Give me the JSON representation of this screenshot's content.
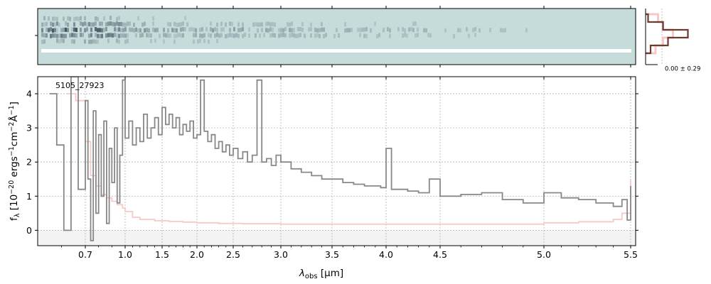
{
  "chart_data": [
    {
      "type": "heatmap",
      "panel": "2D spectrum",
      "colormap": [
        "#c5dcdb",
        "#1a2238"
      ],
      "masked_color": "#c5dcdb",
      "xlim": [
        0.5,
        5.53
      ]
    },
    {
      "type": "line",
      "panel": "spatial profile",
      "annotation": "0.00 ± 0.29",
      "series": [
        {
          "color": "#6b3b32",
          "profile": [
            0.05,
            0.35,
            0.85,
            0.45,
            0.1
          ]
        },
        {
          "color": "#f6c9c4",
          "profile": [
            0.25,
            0.35,
            0.55,
            0.35,
            0.2
          ]
        }
      ]
    },
    {
      "type": "line",
      "panel": "1D spectrum",
      "annotation": "5105_27923",
      "xlabel_pre": "λ",
      "xlabel_sub": "obs",
      "xlabel_post": " [μm]",
      "ylabel_pre": "f",
      "ylabel_sub": "λ",
      "ylabel_post": " [10",
      "ylabel_sup": "−20",
      "ylabel_end": " ergs",
      "ylabel_sup2": "−1",
      "ylabel_end2": "cm",
      "ylabel_sup3": "−2",
      "ylabel_end3": "Å",
      "ylabel_sup4": "−1",
      "ylabel_close": "]",
      "xlim": [
        0.5,
        5.53
      ],
      "ylim": [
        -0.45,
        4.5
      ],
      "x_scale": "nonlinear (prism resolution)",
      "grid": true,
      "x_ticks": [
        0.7,
        1.0,
        1.5,
        2.0,
        2.5,
        3.0,
        3.5,
        4.0,
        4.5,
        5.0,
        5.5
      ],
      "x_tick_labels": [
        "0.7",
        "1.0",
        "1.5",
        "2.0",
        "2.5",
        "3.0",
        "3.5",
        "4.0",
        "4.5",
        "5.0",
        "5.5"
      ],
      "y_ticks": [
        0,
        1,
        2,
        3,
        4
      ],
      "y_tick_labels": [
        "0",
        "1",
        "2",
        "3",
        "4"
      ],
      "series": [
        {
          "color": "#888888",
          "x": [
            0.55,
            0.58,
            0.61,
            0.64,
            0.67,
            0.7,
            0.72,
            0.74,
            0.76,
            0.78,
            0.8,
            0.82,
            0.84,
            0.86,
            0.88,
            0.9,
            0.92,
            0.94,
            0.96,
            0.98,
            1.0,
            1.05,
            1.1,
            1.15,
            1.2,
            1.25,
            1.3,
            1.35,
            1.4,
            1.45,
            1.5,
            1.55,
            1.6,
            1.65,
            1.7,
            1.75,
            1.8,
            1.85,
            1.9,
            1.95,
            2.0,
            2.05,
            2.1,
            2.15,
            2.2,
            2.25,
            2.3,
            2.35,
            2.4,
            2.45,
            2.5,
            2.55,
            2.6,
            2.65,
            2.7,
            2.75,
            2.8,
            2.85,
            2.9,
            2.95,
            3.0,
            3.1,
            3.2,
            3.3,
            3.4,
            3.5,
            3.6,
            3.7,
            3.8,
            3.9,
            3.95,
            4.0,
            4.05,
            4.1,
            4.2,
            4.3,
            4.4,
            4.5,
            4.6,
            4.7,
            4.8,
            4.9,
            5.0,
            5.1,
            5.2,
            5.3,
            5.4,
            5.45,
            5.48,
            5.5
          ],
          "y": [
            4.0,
            2.5,
            0.0,
            4.5,
            1.2,
            3.8,
            1.5,
            -0.3,
            3.5,
            0.5,
            2.8,
            1.0,
            3.2,
            0.2,
            2.4,
            1.4,
            3.0,
            0.8,
            2.2,
            4.4,
            2.7,
            3.2,
            2.5,
            3.0,
            2.6,
            3.4,
            2.7,
            3.0,
            3.3,
            2.8,
            3.6,
            3.1,
            3.4,
            3.0,
            3.3,
            2.8,
            3.1,
            2.9,
            3.2,
            2.7,
            2.8,
            4.4,
            2.9,
            2.6,
            2.8,
            2.4,
            2.6,
            2.3,
            2.5,
            2.2,
            2.4,
            2.1,
            2.3,
            2.0,
            2.2,
            4.4,
            2.0,
            2.1,
            1.9,
            2.2,
            2.0,
            1.8,
            1.7,
            1.6,
            1.5,
            1.5,
            1.4,
            1.35,
            1.3,
            1.3,
            1.25,
            2.4,
            1.2,
            1.2,
            1.15,
            1.1,
            1.5,
            1.0,
            1.05,
            1.1,
            0.9,
            0.8,
            1.1,
            0.95,
            0.9,
            0.8,
            0.7,
            0.9,
            0.3,
            1.3
          ]
        },
        {
          "color": "#f6c9c4",
          "x": [
            0.62,
            0.66,
            0.7,
            0.74,
            0.78,
            0.82,
            0.86,
            0.9,
            0.94,
            0.98,
            1.0,
            1.1,
            1.2,
            1.4,
            1.6,
            1.8,
            2.0,
            2.3,
            2.6,
            3.0,
            3.5,
            4.0,
            4.5,
            5.0,
            5.2,
            5.4,
            5.45,
            5.5
          ],
          "y": [
            4.0,
            3.8,
            2.6,
            1.6,
            1.3,
            1.05,
            0.95,
            0.85,
            0.75,
            0.65,
            0.55,
            0.38,
            0.32,
            0.28,
            0.26,
            0.24,
            0.22,
            0.2,
            0.19,
            0.18,
            0.18,
            0.18,
            0.18,
            0.22,
            0.25,
            0.32,
            0.5,
            1.5
          ]
        }
      ]
    }
  ]
}
